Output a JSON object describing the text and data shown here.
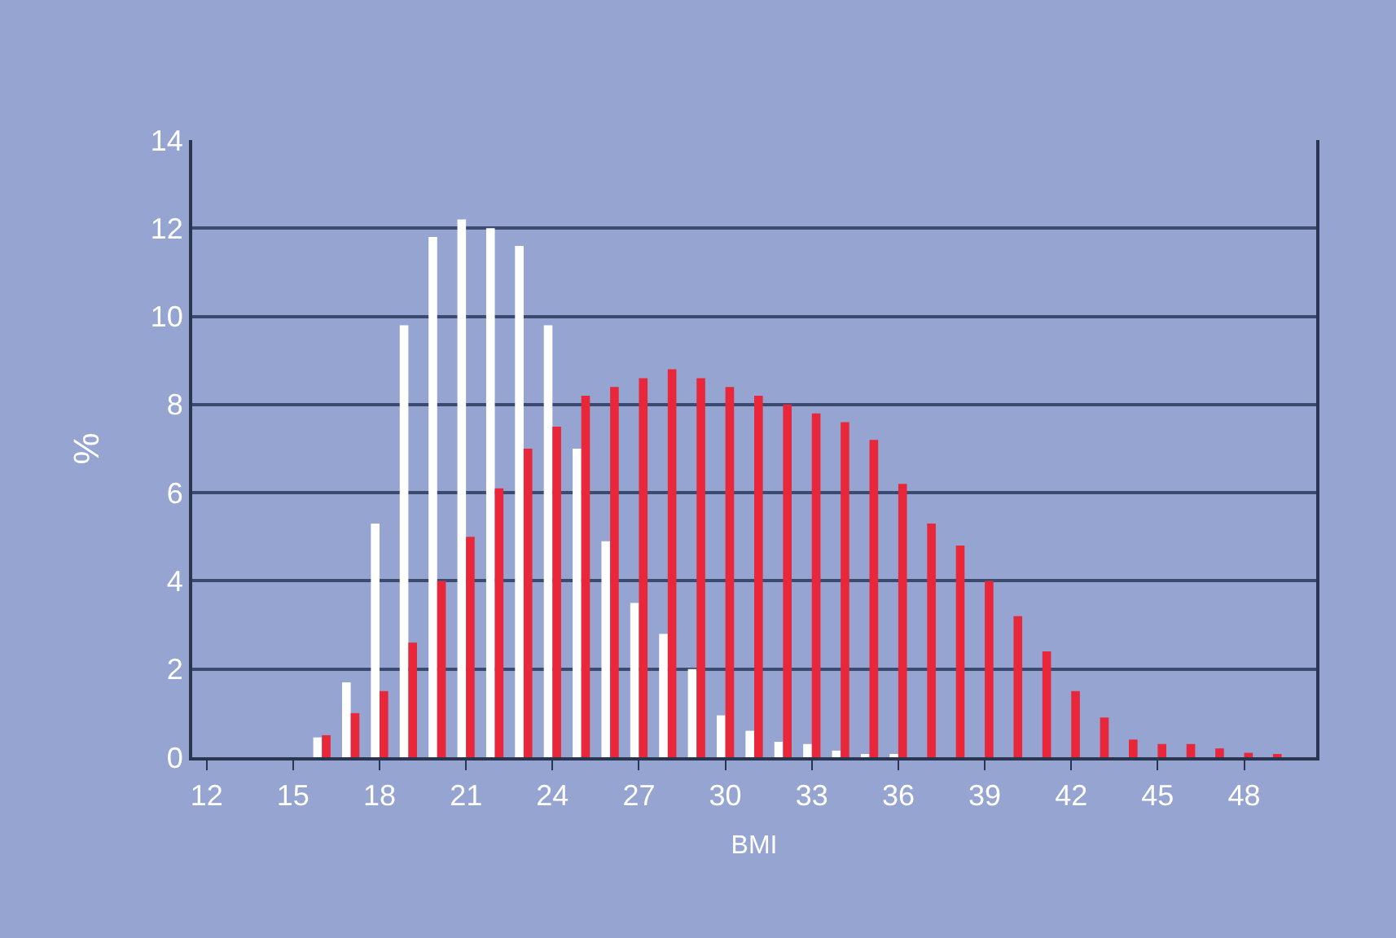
{
  "chart_data": {
    "type": "bar",
    "xlabel": "BMI",
    "ylabel": "%",
    "categories": [
      "12",
      null,
      null,
      "15",
      null,
      null,
      "18",
      null,
      null,
      "21",
      null,
      null,
      "24",
      null,
      null,
      "27",
      null,
      null,
      "30",
      null,
      null,
      "33",
      null,
      null,
      "36",
      null,
      null,
      "39",
      null,
      null,
      "42",
      null,
      null,
      "45",
      null,
      null,
      "48",
      null,
      null
    ],
    "series": [
      {
        "color": "#ffffff",
        "values": [
          0,
          0,
          0,
          0,
          0.45,
          1.7,
          5.3,
          9.8,
          11.8,
          12.2,
          12.0,
          11.6,
          9.8,
          7.0,
          4.9,
          3.5,
          2.8,
          2.0,
          0.95,
          0.6,
          0.35,
          0.3,
          0.15,
          0.05,
          0.05,
          0,
          0,
          0,
          0,
          0,
          0,
          0,
          0,
          0,
          0,
          0,
          0,
          0,
          0
        ]
      },
      {
        "color": "#e8283a",
        "values": [
          0,
          0,
          0,
          0,
          0.5,
          1.0,
          1.5,
          2.6,
          4.0,
          5.0,
          6.1,
          7.0,
          7.5,
          8.2,
          8.4,
          8.6,
          8.8,
          8.6,
          8.4,
          8.2,
          8.0,
          7.8,
          7.6,
          7.2,
          6.2,
          5.3,
          4.8,
          4.0,
          3.2,
          2.4,
          1.5,
          0.9,
          0.4,
          0.3,
          0.3,
          0.2,
          0.1,
          0.05,
          0
        ]
      }
    ],
    "ylim": [
      0,
      14
    ],
    "yticks": [
      0,
      2,
      4,
      6,
      8,
      10,
      12,
      14
    ],
    "grid": "y"
  }
}
